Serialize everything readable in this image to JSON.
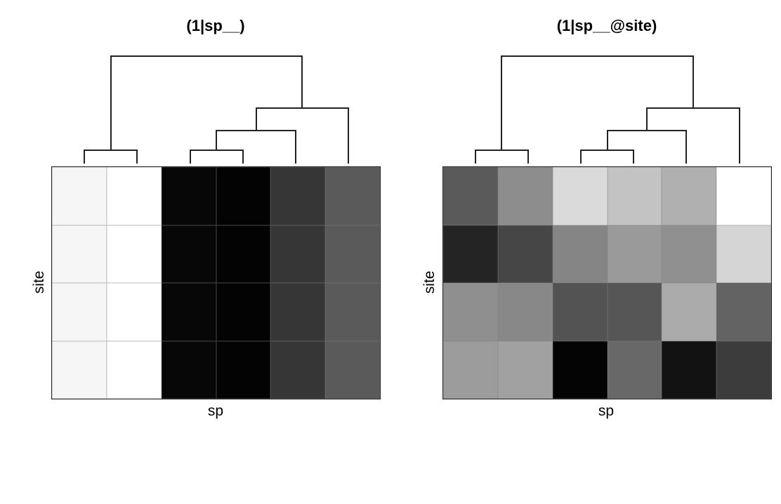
{
  "chart_data": [
    {
      "type": "heatmap",
      "title": "(1|sp__)",
      "xlabel": "sp",
      "ylabel": "site",
      "n_cols": 6,
      "n_rows": 4,
      "colormap": "grayscale (black = high/low extreme, white = opposite)",
      "cell_colors": [
        [
          "#f6f6f6",
          "#ffffff",
          "#070707",
          "#030303",
          "#363636",
          "#5a5a5a"
        ],
        [
          "#f6f6f6",
          "#ffffff",
          "#070707",
          "#030303",
          "#363636",
          "#5a5a5a"
        ],
        [
          "#f6f6f6",
          "#ffffff",
          "#070707",
          "#030303",
          "#363636",
          "#5a5a5a"
        ],
        [
          "#f6f6f6",
          "#ffffff",
          "#070707",
          "#030303",
          "#363636",
          "#5a5a5a"
        ]
      ],
      "dendrogram": {
        "leaf_order": [
          1,
          2,
          3,
          4,
          5,
          6
        ],
        "merges": [
          {
            "left": "leaf1",
            "right": "leaf2",
            "height": 1
          },
          {
            "left": "leaf3",
            "right": "leaf4",
            "height": 1
          },
          {
            "left": "(3,4)",
            "right": "leaf5",
            "height": 2.3
          },
          {
            "left": "((3,4),5)",
            "right": "leaf6",
            "height": 3.7
          },
          {
            "left": "(1,2)",
            "right": "(((3,4),5),6)",
            "height": 7
          }
        ]
      }
    },
    {
      "type": "heatmap",
      "title": "(1|sp__@site)",
      "xlabel": "sp",
      "ylabel": "site",
      "n_cols": 6,
      "n_rows": 4,
      "colormap": "grayscale",
      "cell_colors": [
        [
          "#5a5a5a",
          "#8d8d8d",
          "#dadada",
          "#c3c3c3",
          "#b0b0b0",
          "#ffffff"
        ],
        [
          "#242424",
          "#464646",
          "#858585",
          "#9a9a9a",
          "#909090",
          "#d5d5d5"
        ],
        [
          "#8f8f8f",
          "#888888",
          "#535353",
          "#565656",
          "#ababab",
          "#636363"
        ],
        [
          "#9c9c9c",
          "#a1a1a1",
          "#040404",
          "#686868",
          "#121212",
          "#3c3c3c"
        ]
      ],
      "dendrogram": {
        "leaf_order": [
          1,
          2,
          3,
          4,
          5,
          6
        ],
        "merges": [
          {
            "left": "leaf1",
            "right": "leaf2",
            "height": 1
          },
          {
            "left": "leaf3",
            "right": "leaf4",
            "height": 1
          },
          {
            "left": "(3,4)",
            "right": "leaf5",
            "height": 2.3
          },
          {
            "left": "((3,4),5)",
            "right": "leaf6",
            "height": 3.7
          },
          {
            "left": "(1,2)",
            "right": "(((3,4),5),6)",
            "height": 7
          }
        ]
      }
    }
  ],
  "panels": [
    {
      "title": "(1|sp__)",
      "xlabel": "sp",
      "ylabel": "site"
    },
    {
      "title": "(1|sp__@site)",
      "xlabel": "sp",
      "ylabel": "site"
    }
  ]
}
